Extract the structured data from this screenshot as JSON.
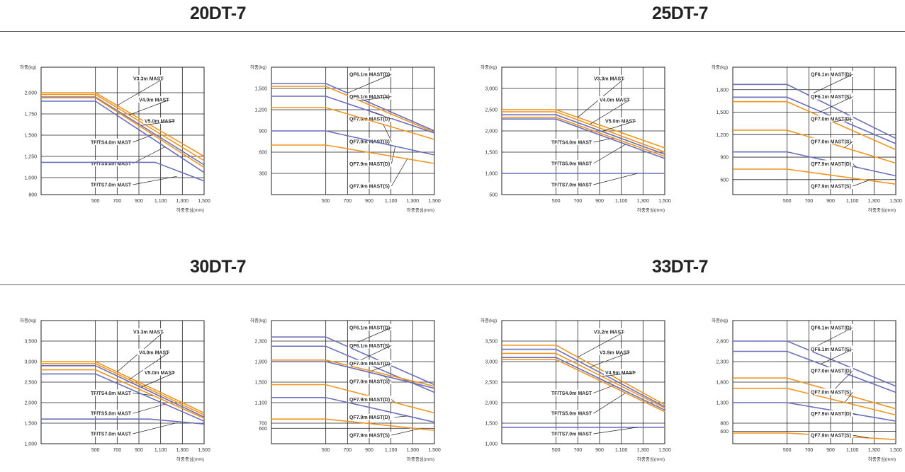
{
  "page": {
    "models": [
      "20DT-7",
      "25DT-7",
      "30DT-7",
      "33DT-7"
    ]
  },
  "colors": {
    "orange": "#F0961E",
    "blue": "#6A6FBE",
    "grid": "#222222",
    "axis_text": "#333333"
  },
  "chart_data": [
    {
      "type": "line",
      "model": "20DT-7",
      "ylabel": "하중(kg)",
      "xlabel": "하중중심(mm)",
      "x_ticks": [
        500,
        700,
        900,
        1100,
        1300,
        1500
      ],
      "x_tick_labels": [
        "500",
        "700",
        "900",
        "1,100",
        "1,300",
        "1,500"
      ],
      "y_ticks": [
        800,
        1000,
        1250,
        1500,
        1750,
        2000
      ],
      "y_tick_labels": [
        "800",
        "1,000",
        "1,250",
        "1,500",
        "1,750",
        "2,000"
      ],
      "xlim": [
        0,
        1500
      ],
      "ylim": [
        800,
        2300
      ],
      "series": [
        {
          "name": "V3.3m MAST",
          "color": "orange",
          "x": [
            0,
            500,
            1500
          ],
          "y": [
            2000,
            2000,
            1250
          ]
        },
        {
          "name": "V4.0m MAST",
          "color": "orange",
          "x": [
            0,
            500,
            1500
          ],
          "y": [
            1980,
            1980,
            1200
          ]
        },
        {
          "name": "V5.0m MAST",
          "color": "blue",
          "x": [
            0,
            500,
            1500
          ],
          "y": [
            1950,
            1950,
            1150
          ]
        },
        {
          "name": "TF/TS4.0m MAST",
          "color": "orange",
          "x": [
            0,
            500,
            1500
          ],
          "y": [
            1940,
            1940,
            1120
          ]
        },
        {
          "name": "TF/TS5.0m MAST",
          "color": "blue",
          "x": [
            0,
            500,
            1500
          ],
          "y": [
            1900,
            1900,
            1060
          ]
        },
        {
          "name": "TF/TS7.0m MAST",
          "color": "blue",
          "x": [
            0,
            1050,
            1500
          ],
          "y": [
            1180,
            1180,
            960
          ]
        }
      ]
    },
    {
      "type": "line",
      "model": "20DT-7",
      "ylabel": "하중(kg)",
      "xlabel": "하중중심(mm)",
      "x_ticks": [
        500,
        700,
        900,
        1100,
        1300,
        1500
      ],
      "x_tick_labels": [
        "500",
        "700",
        "900",
        "1,100",
        "1,300",
        "1,500"
      ],
      "y_ticks": [
        300,
        600,
        900,
        1200,
        1500
      ],
      "y_tick_labels": [
        "300",
        "600",
        "900",
        "1,200",
        "1,500"
      ],
      "xlim": [
        0,
        1500
      ],
      "ylim": [
        0,
        1800
      ],
      "series": [
        {
          "name": "QF6.1m MAST(D)",
          "color": "blue",
          "x": [
            0,
            500,
            1500
          ],
          "y": [
            1570,
            1570,
            900
          ]
        },
        {
          "name": "QF6.1m MAST(S)",
          "color": "orange",
          "x": [
            0,
            500,
            1500
          ],
          "y": [
            1530,
            1530,
            880
          ]
        },
        {
          "name": "QF7.0m MAST(D)",
          "color": "blue",
          "x": [
            0,
            500,
            1500
          ],
          "y": [
            1390,
            1390,
            870
          ]
        },
        {
          "name": "QF7.0m MAST(S)",
          "color": "orange",
          "x": [
            0,
            500,
            1500
          ],
          "y": [
            1230,
            1230,
            780
          ]
        },
        {
          "name": "QF7.9m MAST(D)",
          "color": "blue",
          "x": [
            0,
            500,
            1500
          ],
          "y": [
            900,
            900,
            560
          ]
        },
        {
          "name": "QF7.9m MAST(S)",
          "color": "orange",
          "x": [
            0,
            500,
            1500
          ],
          "y": [
            700,
            700,
            440
          ]
        }
      ]
    },
    {
      "type": "line",
      "model": "25DT-7",
      "ylabel": "하중(kg)",
      "xlabel": "하중중심(mm)",
      "x_ticks": [
        500,
        700,
        900,
        1100,
        1300,
        1500
      ],
      "x_tick_labels": [
        "500",
        "700",
        "900",
        "1,100",
        "1,300",
        "1,500"
      ],
      "y_ticks": [
        500,
        1000,
        1500,
        2000,
        2500,
        3000
      ],
      "y_tick_labels": [
        "500",
        "1,000",
        "1,500",
        "2,000",
        "2,500",
        "3,000"
      ],
      "xlim": [
        0,
        1500
      ],
      "ylim": [
        500,
        3500
      ],
      "series": [
        {
          "name": "V3.3m MAST",
          "color": "orange",
          "x": [
            0,
            500,
            1500
          ],
          "y": [
            2500,
            2500,
            1600
          ]
        },
        {
          "name": "V4.0m MAST",
          "color": "orange",
          "x": [
            0,
            500,
            1500
          ],
          "y": [
            2450,
            2450,
            1500
          ]
        },
        {
          "name": "V5.0m MAST",
          "color": "blue",
          "x": [
            0,
            500,
            1500
          ],
          "y": [
            2380,
            2380,
            1450
          ]
        },
        {
          "name": "TF/TS4.0m MAST",
          "color": "orange",
          "x": [
            0,
            500,
            1500
          ],
          "y": [
            2320,
            2320,
            1400
          ]
        },
        {
          "name": "TF/TS5.0m MAST",
          "color": "blue",
          "x": [
            0,
            500,
            1500
          ],
          "y": [
            2280,
            2280,
            1350
          ]
        },
        {
          "name": "TF/TS7.0m MAST",
          "color": "blue",
          "x": [
            0,
            500,
            1500
          ],
          "y": [
            1000,
            1000,
            1000
          ]
        }
      ]
    },
    {
      "type": "line",
      "model": "25DT-7",
      "ylabel": "하중(kg)",
      "xlabel": "하중중심(mm)",
      "x_ticks": [
        500,
        700,
        900,
        1100,
        1300,
        1500
      ],
      "x_tick_labels": [
        "500",
        "700",
        "900",
        "1,100",
        "1,300",
        "1,500"
      ],
      "y_ticks": [
        600,
        900,
        1200,
        1500,
        1800
      ],
      "y_tick_labels": [
        "600",
        "900",
        "1,200",
        "1,500",
        "1,800"
      ],
      "xlim": [
        0,
        1500
      ],
      "ylim": [
        400,
        2100
      ],
      "series": [
        {
          "name": "QF6.1m MAST(D)",
          "color": "blue",
          "x": [
            0,
            500,
            1500
          ],
          "y": [
            1870,
            1870,
            1150
          ]
        },
        {
          "name": "QF6.1m MAST(S)",
          "color": "blue",
          "x": [
            0,
            500,
            1500
          ],
          "y": [
            1700,
            1700,
            1080
          ]
        },
        {
          "name": "QF7.0m MAST(D)",
          "color": "orange",
          "x": [
            0,
            500,
            1500
          ],
          "y": [
            1640,
            1640,
            1000
          ]
        },
        {
          "name": "QF7.0m MAST(S)",
          "color": "orange",
          "x": [
            0,
            500,
            1500
          ],
          "y": [
            1260,
            1260,
            820
          ]
        },
        {
          "name": "QF7.9m MAST(D)",
          "color": "blue",
          "x": [
            0,
            500,
            1500
          ],
          "y": [
            970,
            970,
            650
          ]
        },
        {
          "name": "QF7.9m MAST(S)",
          "color": "orange",
          "x": [
            0,
            500,
            1500
          ],
          "y": [
            740,
            740,
            540
          ]
        }
      ]
    },
    {
      "type": "line",
      "model": "30DT-7",
      "ylabel": "하중(kg)",
      "xlabel": "하중중심(mm)",
      "x_ticks": [
        500,
        700,
        900,
        1100,
        1300,
        1500
      ],
      "x_tick_labels": [
        "500",
        "700",
        "900",
        "1,100",
        "1,300",
        "1,500"
      ],
      "y_ticks": [
        1000,
        1500,
        2000,
        2500,
        3000,
        3500
      ],
      "y_tick_labels": [
        "1,000",
        "1,500",
        "2,000",
        "2,500",
        "3,000",
        "3,500"
      ],
      "xlim": [
        0,
        1500
      ],
      "ylim": [
        1000,
        4000
      ],
      "series": [
        {
          "name": "V3.3m MAST",
          "color": "orange",
          "x": [
            0,
            500,
            1500
          ],
          "y": [
            3000,
            3000,
            1750
          ]
        },
        {
          "name": "V4.0m MAST",
          "color": "orange",
          "x": [
            0,
            500,
            1500
          ],
          "y": [
            2950,
            2950,
            1700
          ]
        },
        {
          "name": "V5.0m MAST",
          "color": "blue",
          "x": [
            0,
            500,
            1500
          ],
          "y": [
            2900,
            2900,
            1650
          ]
        },
        {
          "name": "TF/TS4.0m MAST",
          "color": "orange",
          "x": [
            0,
            500,
            1500
          ],
          "y": [
            2800,
            2800,
            1620
          ]
        },
        {
          "name": "TF/TS5.0m MAST",
          "color": "blue",
          "x": [
            0,
            500,
            1500
          ],
          "y": [
            2700,
            2700,
            1550
          ]
        },
        {
          "name": "TF/TS7.0m MAST",
          "color": "blue",
          "x": [
            0,
            1000,
            1500
          ],
          "y": [
            1600,
            1600,
            1480
          ]
        }
      ]
    },
    {
      "type": "line",
      "model": "30DT-7",
      "ylabel": "하중(kg)",
      "xlabel": "하중중심(mm)",
      "x_ticks": [
        500,
        700,
        900,
        1100,
        1300,
        1500
      ],
      "x_tick_labels": [
        "500",
        "700",
        "900",
        "1,100",
        "1,300",
        "1,500"
      ],
      "y_ticks": [
        600,
        700,
        1100,
        1500,
        1900,
        2300
      ],
      "y_tick_labels": [
        "600",
        "700",
        "1,100",
        "1,500",
        "1,900",
        "2,300"
      ],
      "xlim": [
        0,
        1500
      ],
      "ylim": [
        300,
        2700
      ],
      "series": [
        {
          "name": "QF6.1m MAST(D)",
          "color": "blue",
          "x": [
            0,
            500,
            1500
          ],
          "y": [
            2380,
            2380,
            1450
          ]
        },
        {
          "name": "QF6.1m MAST(S)",
          "color": "blue",
          "x": [
            0,
            500,
            1500
          ],
          "y": [
            2200,
            2200,
            1300
          ]
        },
        {
          "name": "QF7.0m MAST(D)",
          "color": "orange",
          "x": [
            0,
            500,
            1500
          ],
          "y": [
            1930,
            1930,
            1420
          ]
        },
        {
          "name": "QF7.0m MAST(S)",
          "color": "blue",
          "x": [
            0,
            500,
            1500
          ],
          "y": [
            1900,
            1900,
            1380
          ]
        },
        {
          "name": "QF7.9m MAST(D)",
          "color": "orange",
          "x": [
            0,
            500,
            1500
          ],
          "y": [
            1450,
            1450,
            900
          ]
        },
        {
          "name": "QF7.9m MAST(D) ",
          "color": "blue",
          "x": [
            0,
            500,
            1500
          ],
          "y": [
            1200,
            1200,
            720
          ]
        },
        {
          "name": "QF7.9m MAST(S)",
          "color": "orange",
          "x": [
            0,
            500,
            1500
          ],
          "y": [
            780,
            780,
            560
          ]
        }
      ]
    },
    {
      "type": "line",
      "model": "33DT-7",
      "ylabel": "하중(kg)",
      "xlabel": "하중중심(mm)",
      "x_ticks": [
        500,
        700,
        900,
        1100,
        1300,
        1500
      ],
      "x_tick_labels": [
        "500",
        "700",
        "900",
        "1,100",
        "1,300",
        "1,500"
      ],
      "y_ticks": [
        1000,
        1500,
        2000,
        2500,
        3000,
        3500
      ],
      "y_tick_labels": [
        "1,000",
        "1,500",
        "2,000",
        "2,500",
        "3,000",
        "3,500"
      ],
      "xlim": [
        0,
        1500
      ],
      "ylim": [
        1000,
        4000
      ],
      "series": [
        {
          "name": "V3.2m MAST",
          "color": "orange",
          "x": [
            0,
            500,
            1500
          ],
          "y": [
            3400,
            3400,
            1950
          ]
        },
        {
          "name": "V3.9m MAST",
          "color": "blue",
          "x": [
            0,
            500,
            1500
          ],
          "y": [
            3300,
            3300,
            1900
          ]
        },
        {
          "name": "V4.9m MAST",
          "color": "orange",
          "x": [
            0,
            500,
            1500
          ],
          "y": [
            3200,
            3200,
            1870
          ]
        },
        {
          "name": "TF/TS4.0m MAST",
          "color": "blue",
          "x": [
            0,
            500,
            1500
          ],
          "y": [
            3100,
            3100,
            1820
          ]
        },
        {
          "name": "TF/TS5.0m MAST",
          "color": "orange",
          "x": [
            0,
            500,
            1500
          ],
          "y": [
            3050,
            3050,
            1780
          ]
        },
        {
          "name": "TF/TS7.0m MAST",
          "color": "blue",
          "x": [
            0,
            500,
            1500
          ],
          "y": [
            1400,
            1400,
            1400
          ]
        }
      ]
    },
    {
      "type": "line",
      "model": "33DT-7",
      "ylabel": "하중(kg)",
      "xlabel": "하중중심(mm)",
      "x_ticks": [
        500,
        700,
        900,
        1100,
        1300,
        1500
      ],
      "x_tick_labels": [
        "500",
        "700",
        "900",
        "1,100",
        "1,300",
        "1,500"
      ],
      "y_ticks": [
        600,
        800,
        1300,
        1800,
        2300,
        2800
      ],
      "y_tick_labels": [
        "600",
        "800",
        "1,300",
        "1,800",
        "2,300",
        "2,800"
      ],
      "xlim": [
        0,
        1500
      ],
      "ylim": [
        300,
        3300
      ],
      "series": [
        {
          "name": "QF6.1m MAST(D)",
          "color": "blue",
          "x": [
            0,
            500,
            1500
          ],
          "y": [
            2800,
            2800,
            1700
          ]
        },
        {
          "name": "QF6.1m MAST(S)",
          "color": "blue",
          "x": [
            0,
            500,
            1500
          ],
          "y": [
            2550,
            2550,
            1550
          ]
        },
        {
          "name": "QF7.0m MAST(D)",
          "color": "orange",
          "x": [
            0,
            500,
            1500
          ],
          "y": [
            1900,
            1900,
            1150
          ]
        },
        {
          "name": "QF7.0m MAST(S)",
          "color": "orange",
          "x": [
            0,
            500,
            1500
          ],
          "y": [
            1650,
            1650,
            1000
          ]
        },
        {
          "name": "QF7.9m MAST(D)",
          "color": "blue",
          "x": [
            0,
            500,
            1500
          ],
          "y": [
            1300,
            1300,
            850
          ]
        },
        {
          "name": "QF7.9m MAST(S)",
          "color": "orange",
          "x": [
            0,
            500,
            1500
          ],
          "y": [
            560,
            560,
            400
          ]
        }
      ]
    }
  ]
}
